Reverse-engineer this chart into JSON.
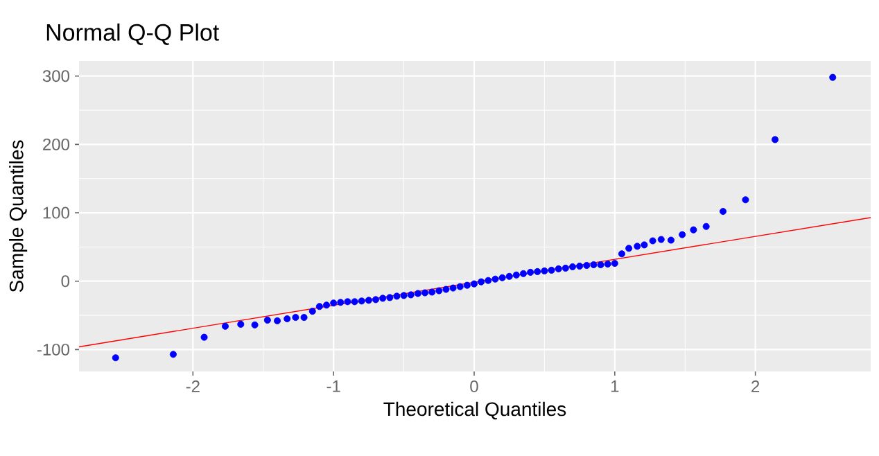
{
  "chart_data": {
    "type": "scatter",
    "title": "Normal Q-Q Plot",
    "xlabel": "Theoretical Quantiles",
    "ylabel": "Sample Quantiles",
    "xlim": [
      -2.81,
      2.82
    ],
    "ylim": [
      -132,
      322
    ],
    "xticks": [
      -2,
      -1,
      0,
      1,
      2
    ],
    "yticks": [
      -100,
      0,
      100,
      200,
      300
    ],
    "grid": true,
    "marker": "circle",
    "series": [
      {
        "color": "#0000ff",
        "x": [
          -2.55,
          -2.14,
          -1.92,
          -1.77,
          -1.66,
          -1.56,
          -1.47,
          -1.4,
          -1.33,
          -1.27,
          -1.21,
          -1.15,
          -1.1,
          -1.05,
          -1.0,
          -0.95,
          -0.9,
          -0.85,
          -0.8,
          -0.75,
          -0.7,
          -0.65,
          -0.6,
          -0.55,
          -0.5,
          -0.45,
          -0.4,
          -0.35,
          -0.3,
          -0.25,
          -0.2,
          -0.15,
          -0.1,
          -0.05,
          0.0,
          0.05,
          0.1,
          0.15,
          0.2,
          0.25,
          0.3,
          0.35,
          0.4,
          0.45,
          0.5,
          0.55,
          0.6,
          0.65,
          0.7,
          0.75,
          0.8,
          0.85,
          0.9,
          0.95,
          1.0,
          1.05,
          1.1,
          1.16,
          1.21,
          1.27,
          1.33,
          1.4,
          1.48,
          1.56,
          1.65,
          1.77,
          1.93,
          2.14,
          2.55
        ],
        "values": [
          -112,
          -107,
          -82,
          -66,
          -63,
          -64,
          -57,
          -58,
          -55,
          -53,
          -53,
          -44,
          -37,
          -35,
          -32,
          -31,
          -30,
          -30,
          -29,
          -28,
          -27,
          -25,
          -24,
          -22,
          -21,
          -20,
          -18,
          -17,
          -16,
          -14,
          -12,
          -10,
          -8,
          -6,
          -4,
          -1,
          1,
          3,
          5,
          7,
          9,
          11,
          13,
          14,
          15,
          16,
          18,
          19,
          21,
          22,
          23,
          24,
          24,
          25,
          26,
          40,
          48,
          51,
          53,
          59,
          61,
          60,
          68,
          75,
          80,
          102,
          119,
          207,
          298
        ]
      },
      {
        "type": "line",
        "marker": "none",
        "color": "#ff0000",
        "x": [
          -2.81,
          2.82
        ],
        "values": [
          -96,
          93
        ]
      }
    ]
  }
}
